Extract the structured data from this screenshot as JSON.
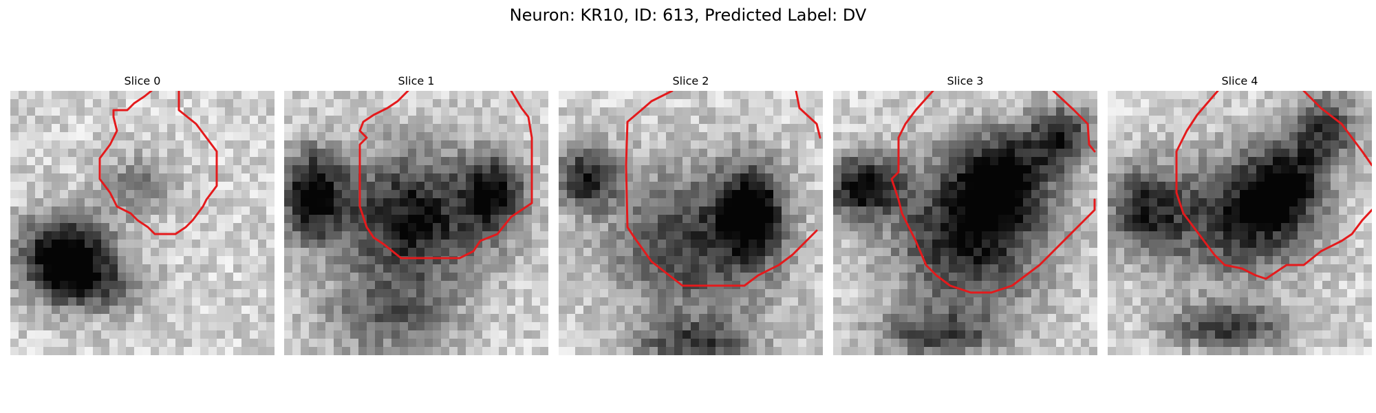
{
  "figure": {
    "title": "Neuron: KR10, ID: 613, Predicted Label: DV"
  },
  "slices": [
    {
      "title": "Slice 0"
    },
    {
      "title": "Slice 1"
    },
    {
      "title": "Slice 2"
    },
    {
      "title": "Slice 3"
    },
    {
      "title": "Slice 4"
    }
  ],
  "colors": {
    "contour": "#e41a1c",
    "background": "#ffffff",
    "colormap": "grayscale"
  }
}
